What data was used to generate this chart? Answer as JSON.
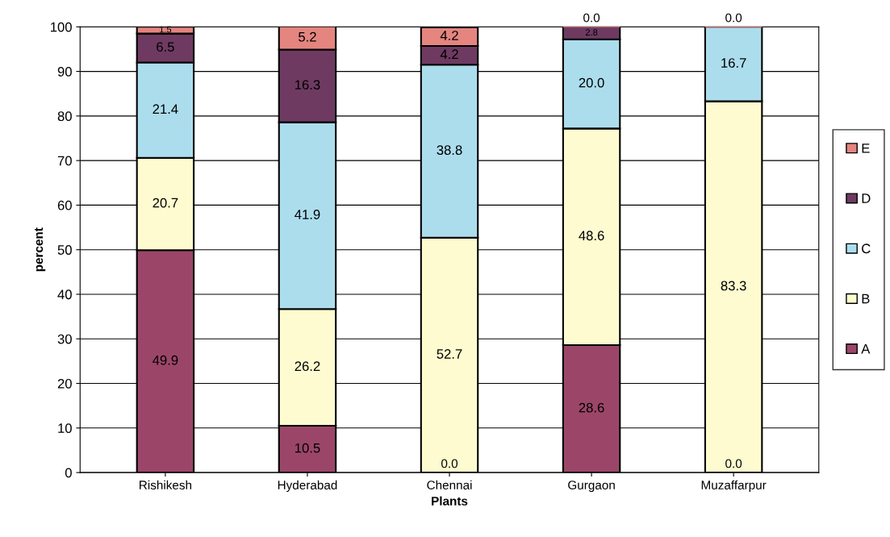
{
  "chart_data": {
    "type": "bar",
    "stacked": true,
    "xlabel": "Plants",
    "ylabel": "percent",
    "categories": [
      "Rishikesh",
      "Hyderabad",
      "Chennai",
      "Gurgaon",
      "Muzaffarpur"
    ],
    "series": [
      {
        "name": "A",
        "color": "#9b4668",
        "values": [
          49.9,
          10.5,
          0.0,
          28.6,
          0.0
        ],
        "value_labels": [
          "49.9",
          "10.5",
          "0.0",
          "28.6",
          "0.0"
        ]
      },
      {
        "name": "B",
        "color": "#fdfbcf",
        "values": [
          20.7,
          26.2,
          52.7,
          48.6,
          83.3
        ],
        "value_labels": [
          "20.7",
          "26.2",
          "52.7",
          "48.6",
          "83.3"
        ]
      },
      {
        "name": "C",
        "color": "#acdded",
        "values": [
          21.4,
          41.9,
          38.8,
          20.0,
          16.7
        ],
        "value_labels": [
          "21.4",
          "41.9",
          "38.8",
          "20.0",
          "16.7"
        ]
      },
      {
        "name": "D",
        "color": "#6e3a62",
        "values": [
          6.5,
          16.3,
          4.2,
          2.8,
          null
        ],
        "value_labels": [
          "6.5",
          "16.3",
          "4.2",
          "2.8",
          null
        ]
      },
      {
        "name": "E",
        "color": "#e4857f",
        "values": [
          1.5,
          5.2,
          4.2,
          0.0,
          0.0
        ],
        "value_labels": [
          "1.5",
          "5.2",
          "4.2",
          "0.0",
          "0.0"
        ]
      }
    ],
    "ylim": [
      0,
      100
    ],
    "yticks": [
      0,
      10,
      20,
      30,
      40,
      50,
      60,
      70,
      80,
      90,
      100
    ],
    "grid": "y",
    "legend": "right"
  }
}
